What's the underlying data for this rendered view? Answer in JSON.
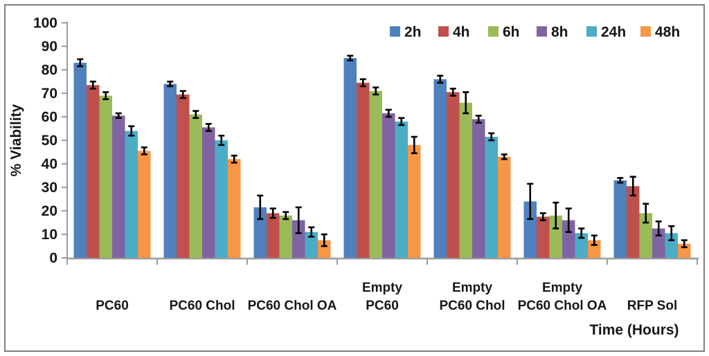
{
  "chart_data": {
    "type": "bar",
    "title": "",
    "ylabel": "% Viability",
    "xlabel": "Time (Hours)",
    "ylim": [
      0,
      100
    ],
    "ytick_step": 10,
    "grid": false,
    "legend_position": "top-right",
    "legend_entries": [
      "2h",
      "4h",
      "6h",
      "8h",
      "24h",
      "48h"
    ],
    "axis_color": "#9c9c9c",
    "error_bar_color": "#000000",
    "text_color": "#161616",
    "categories": [
      "PC60",
      "PC60 Chol",
      "PC60 Chol OA",
      "Empty PC60",
      "Empty PC60 Chol",
      "Empty PC60 Chol OA",
      "RFP Sol"
    ],
    "category_lines": [
      [
        "PC60"
      ],
      [
        "PC60 Chol"
      ],
      [
        "PC60 Chol OA"
      ],
      [
        "Empty",
        "PC60"
      ],
      [
        "Empty",
        "PC60 Chol"
      ],
      [
        "Empty",
        "PC60 Chol OA"
      ],
      [
        "RFP Sol"
      ]
    ],
    "series": [
      {
        "name": "2h",
        "color": "#4f81bd",
        "values": [
          83,
          74,
          21.5,
          85,
          76,
          24,
          33
        ],
        "errors": [
          1.5,
          1,
          5,
          1,
          1.5,
          7.5,
          1
        ]
      },
      {
        "name": "4h",
        "color": "#c0504d",
        "values": [
          73.5,
          69.5,
          19,
          74.5,
          70.5,
          17.5,
          30.5
        ],
        "errors": [
          1.5,
          1.5,
          2,
          1.5,
          1.5,
          1.5,
          4
        ]
      },
      {
        "name": "6h",
        "color": "#9bbb59",
        "values": [
          69,
          61,
          18,
          71,
          66,
          18,
          19
        ],
        "errors": [
          1.5,
          1.5,
          1.5,
          1.5,
          4.5,
          5.5,
          4
        ]
      },
      {
        "name": "8h",
        "color": "#8064a2",
        "values": [
          60.5,
          55.5,
          16,
          61.5,
          59,
          16,
          12.5
        ],
        "errors": [
          1,
          1.5,
          5.5,
          1.5,
          1.5,
          5,
          3
        ]
      },
      {
        "name": "24h",
        "color": "#4bacc6",
        "values": [
          54,
          50,
          11,
          58,
          51.5,
          10.5,
          10.5
        ],
        "errors": [
          2,
          2,
          2,
          1.5,
          1.5,
          2,
          3
        ]
      },
      {
        "name": "48h",
        "color": "#f79646",
        "values": [
          45.5,
          42,
          7.5,
          48,
          43,
          7.5,
          6
        ],
        "errors": [
          1.5,
          1.5,
          2.5,
          3.5,
          1,
          2,
          1.5
        ]
      }
    ]
  }
}
